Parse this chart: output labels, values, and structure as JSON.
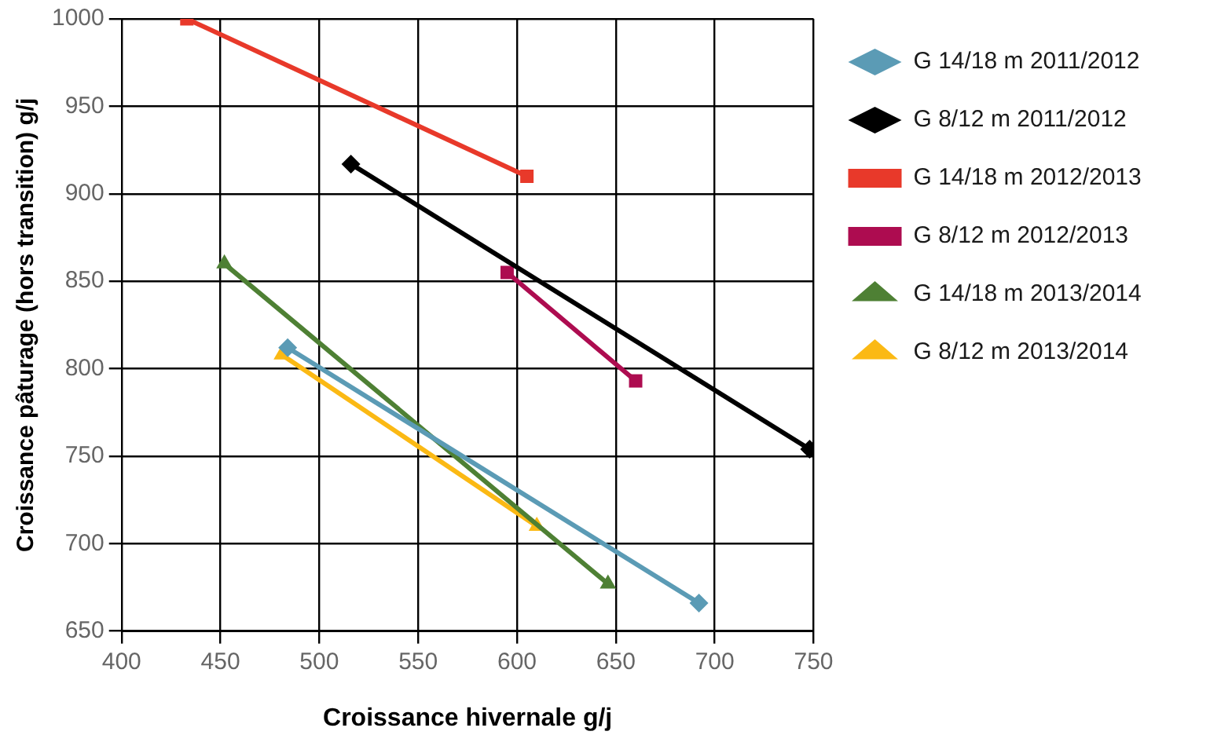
{
  "chart_data": {
    "type": "line",
    "xlabel": "Croissance hivernale g/j",
    "ylabel": "Croissance pâturage (hors transition) g/j",
    "xlim": [
      400,
      750
    ],
    "xticks": [
      400,
      450,
      500,
      550,
      600,
      650,
      700,
      750
    ],
    "ylim": [
      650,
      1000
    ],
    "yticks": [
      650,
      700,
      750,
      800,
      850,
      900,
      950,
      1000
    ],
    "grid": true,
    "legend": "right",
    "line_style": "solid",
    "series": [
      {
        "name": "G 14/18 m 2011/2012",
        "color": "#5b9bb5",
        "marker": "diamond",
        "x": [
          484,
          692
        ],
        "values": [
          812,
          666
        ]
      },
      {
        "name": "G 8/12 m 2011/2012",
        "color": "#000000",
        "marker": "diamond",
        "x": [
          516,
          748
        ],
        "values": [
          917,
          754
        ]
      },
      {
        "name": "G 14/18 m 2012/2013",
        "color": "#e8392a",
        "marker": "square",
        "x": [
          433,
          605
        ],
        "values": [
          1000,
          910
        ]
      },
      {
        "name": "G 8/12 m 2012/2013",
        "color": "#ad0c50",
        "marker": "square",
        "x": [
          595,
          660
        ],
        "values": [
          855,
          793
        ]
      },
      {
        "name": "G 14/18 m 2013/2014",
        "color": "#4e8034",
        "marker": "triangle",
        "x": [
          452,
          646
        ],
        "values": [
          860,
          677
        ]
      },
      {
        "name": "G 8/12 m 2013/2014",
        "color": "#fbb914",
        "marker": "triangle",
        "x": [
          481,
          610
        ],
        "values": [
          808,
          710
        ]
      }
    ]
  }
}
